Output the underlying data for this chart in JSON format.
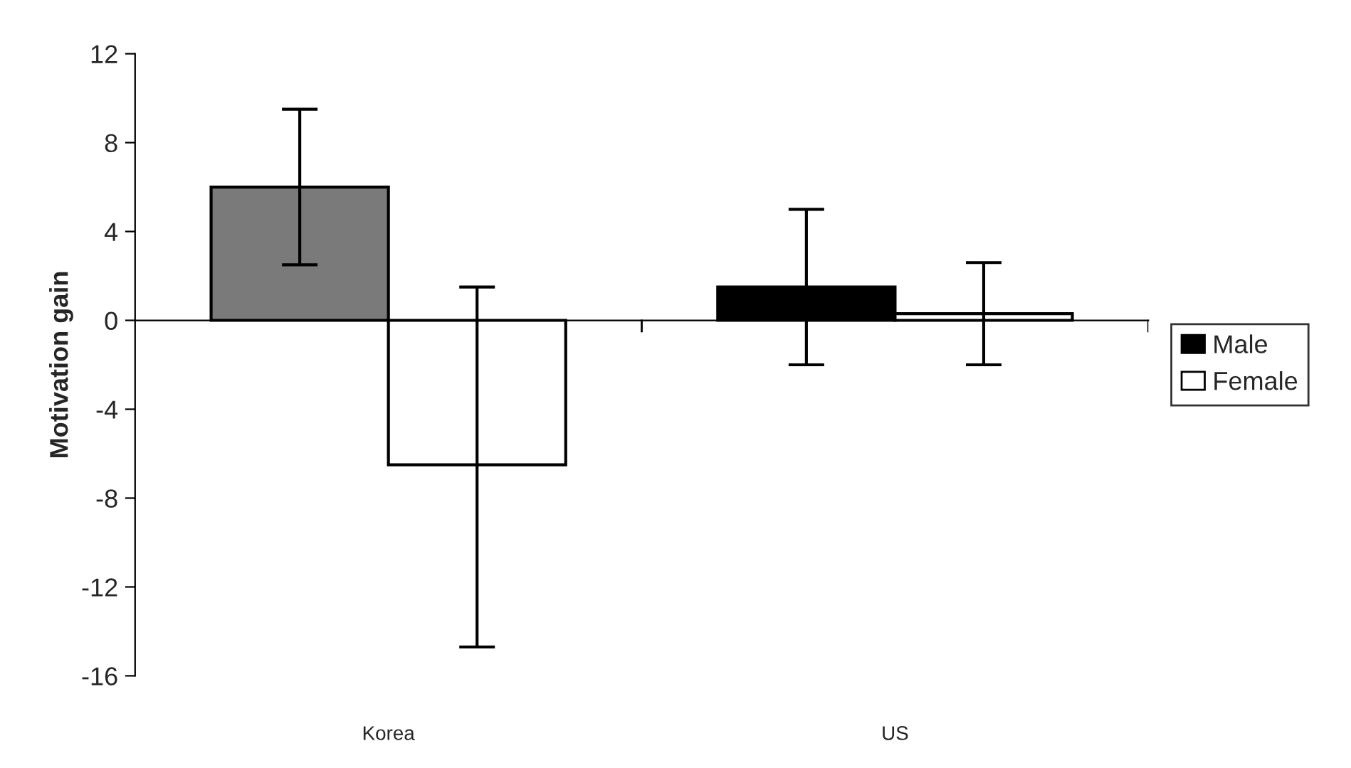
{
  "chart_data": {
    "type": "bar",
    "ylabel": "Motivation gain",
    "categories": [
      "Korea",
      "US"
    ],
    "series": [
      {
        "name": "Male",
        "color": "#000000",
        "colors": [
          "#7a7a7a",
          "#000000"
        ],
        "values": [
          6.0,
          1.5
        ],
        "errors": [
          [
            2.5,
            9.5
          ],
          [
            -2.0,
            5.0
          ]
        ]
      },
      {
        "name": "Female",
        "color": "#ffffff",
        "colors": [
          "#ffffff",
          "#ffffff"
        ],
        "values": [
          -6.5,
          0.3
        ],
        "errors": [
          [
            -14.7,
            1.5
          ],
          [
            -2.0,
            2.6
          ]
        ]
      }
    ],
    "ylim": [
      -16,
      12
    ],
    "yticks": [
      -16,
      -12,
      -8,
      -4,
      0,
      4,
      8,
      12
    ],
    "legend": "right"
  }
}
